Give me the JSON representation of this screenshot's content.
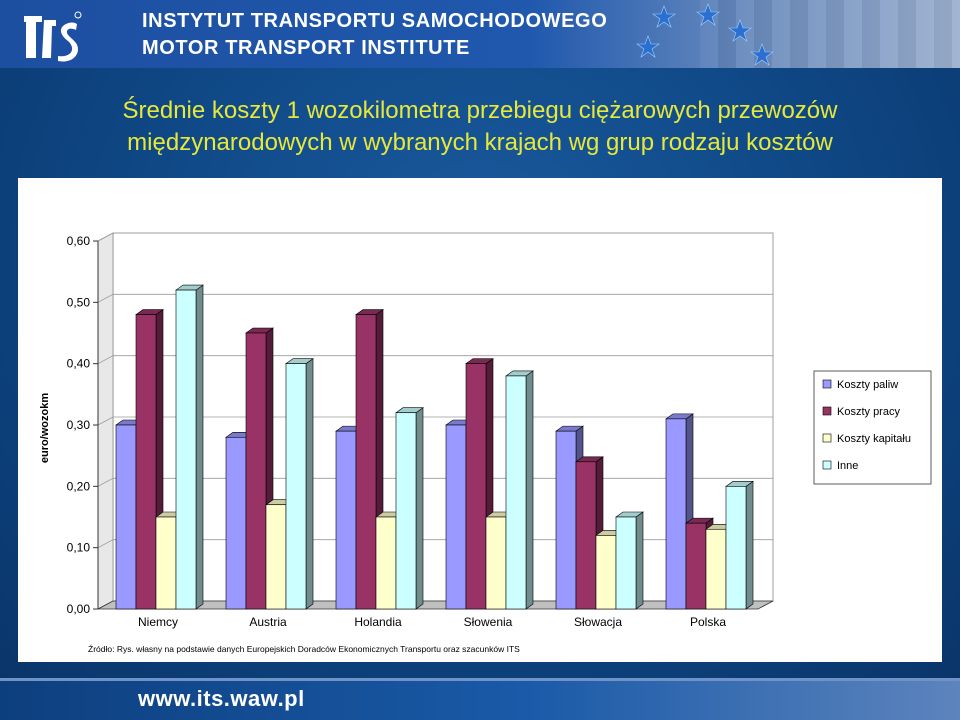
{
  "header": {
    "line1": "INSTYTUT TRANSPORTU SAMOCHODOWEGO",
    "line2": "MOTOR TRANSPORT INSTITUTE"
  },
  "slide": {
    "title_line1": "Średnie koszty 1 wozokilometra przebiegu ciężarowych przewozów",
    "title_line2": "międzynarodowych w wybranych krajach wg grup rodzaju kosztów"
  },
  "footer": {
    "url": "www.its.waw.pl"
  },
  "colors": {
    "title": "#e6e83a",
    "Koszty paliw": "#9999ff",
    "Koszty pracy": "#993366",
    "Koszty kapitału": "#ffffcc",
    "Inne": "#ccffff"
  },
  "chart_data": {
    "type": "bar",
    "style": "3d-clustered",
    "categories": [
      "Niemcy",
      "Austria",
      "Holandia",
      "Słowenia",
      "Słowacja",
      "Polska"
    ],
    "series": [
      {
        "name": "Koszty paliw",
        "values": [
          0.3,
          0.28,
          0.29,
          0.3,
          0.29,
          0.31
        ]
      },
      {
        "name": "Koszty pracy",
        "values": [
          0.48,
          0.45,
          0.48,
          0.4,
          0.24,
          0.14
        ]
      },
      {
        "name": "Koszty kapitału",
        "values": [
          0.15,
          0.17,
          0.15,
          0.15,
          0.12,
          0.13
        ]
      },
      {
        "name": "Inne",
        "values": [
          0.52,
          0.4,
          0.32,
          0.38,
          0.15,
          0.2
        ]
      }
    ],
    "ylabel": "euro/wozokm",
    "ylim": [
      0,
      0.6
    ],
    "yticks": [
      "0,00",
      "0,10",
      "0,20",
      "0,30",
      "0,40",
      "0,50",
      "0,60"
    ],
    "legend_position": "right",
    "source_note": "Źródło: Rys. własny na podstawie danych Europejskich Doradców Ekonomicznych Transportu oraz szacunków ITS"
  }
}
